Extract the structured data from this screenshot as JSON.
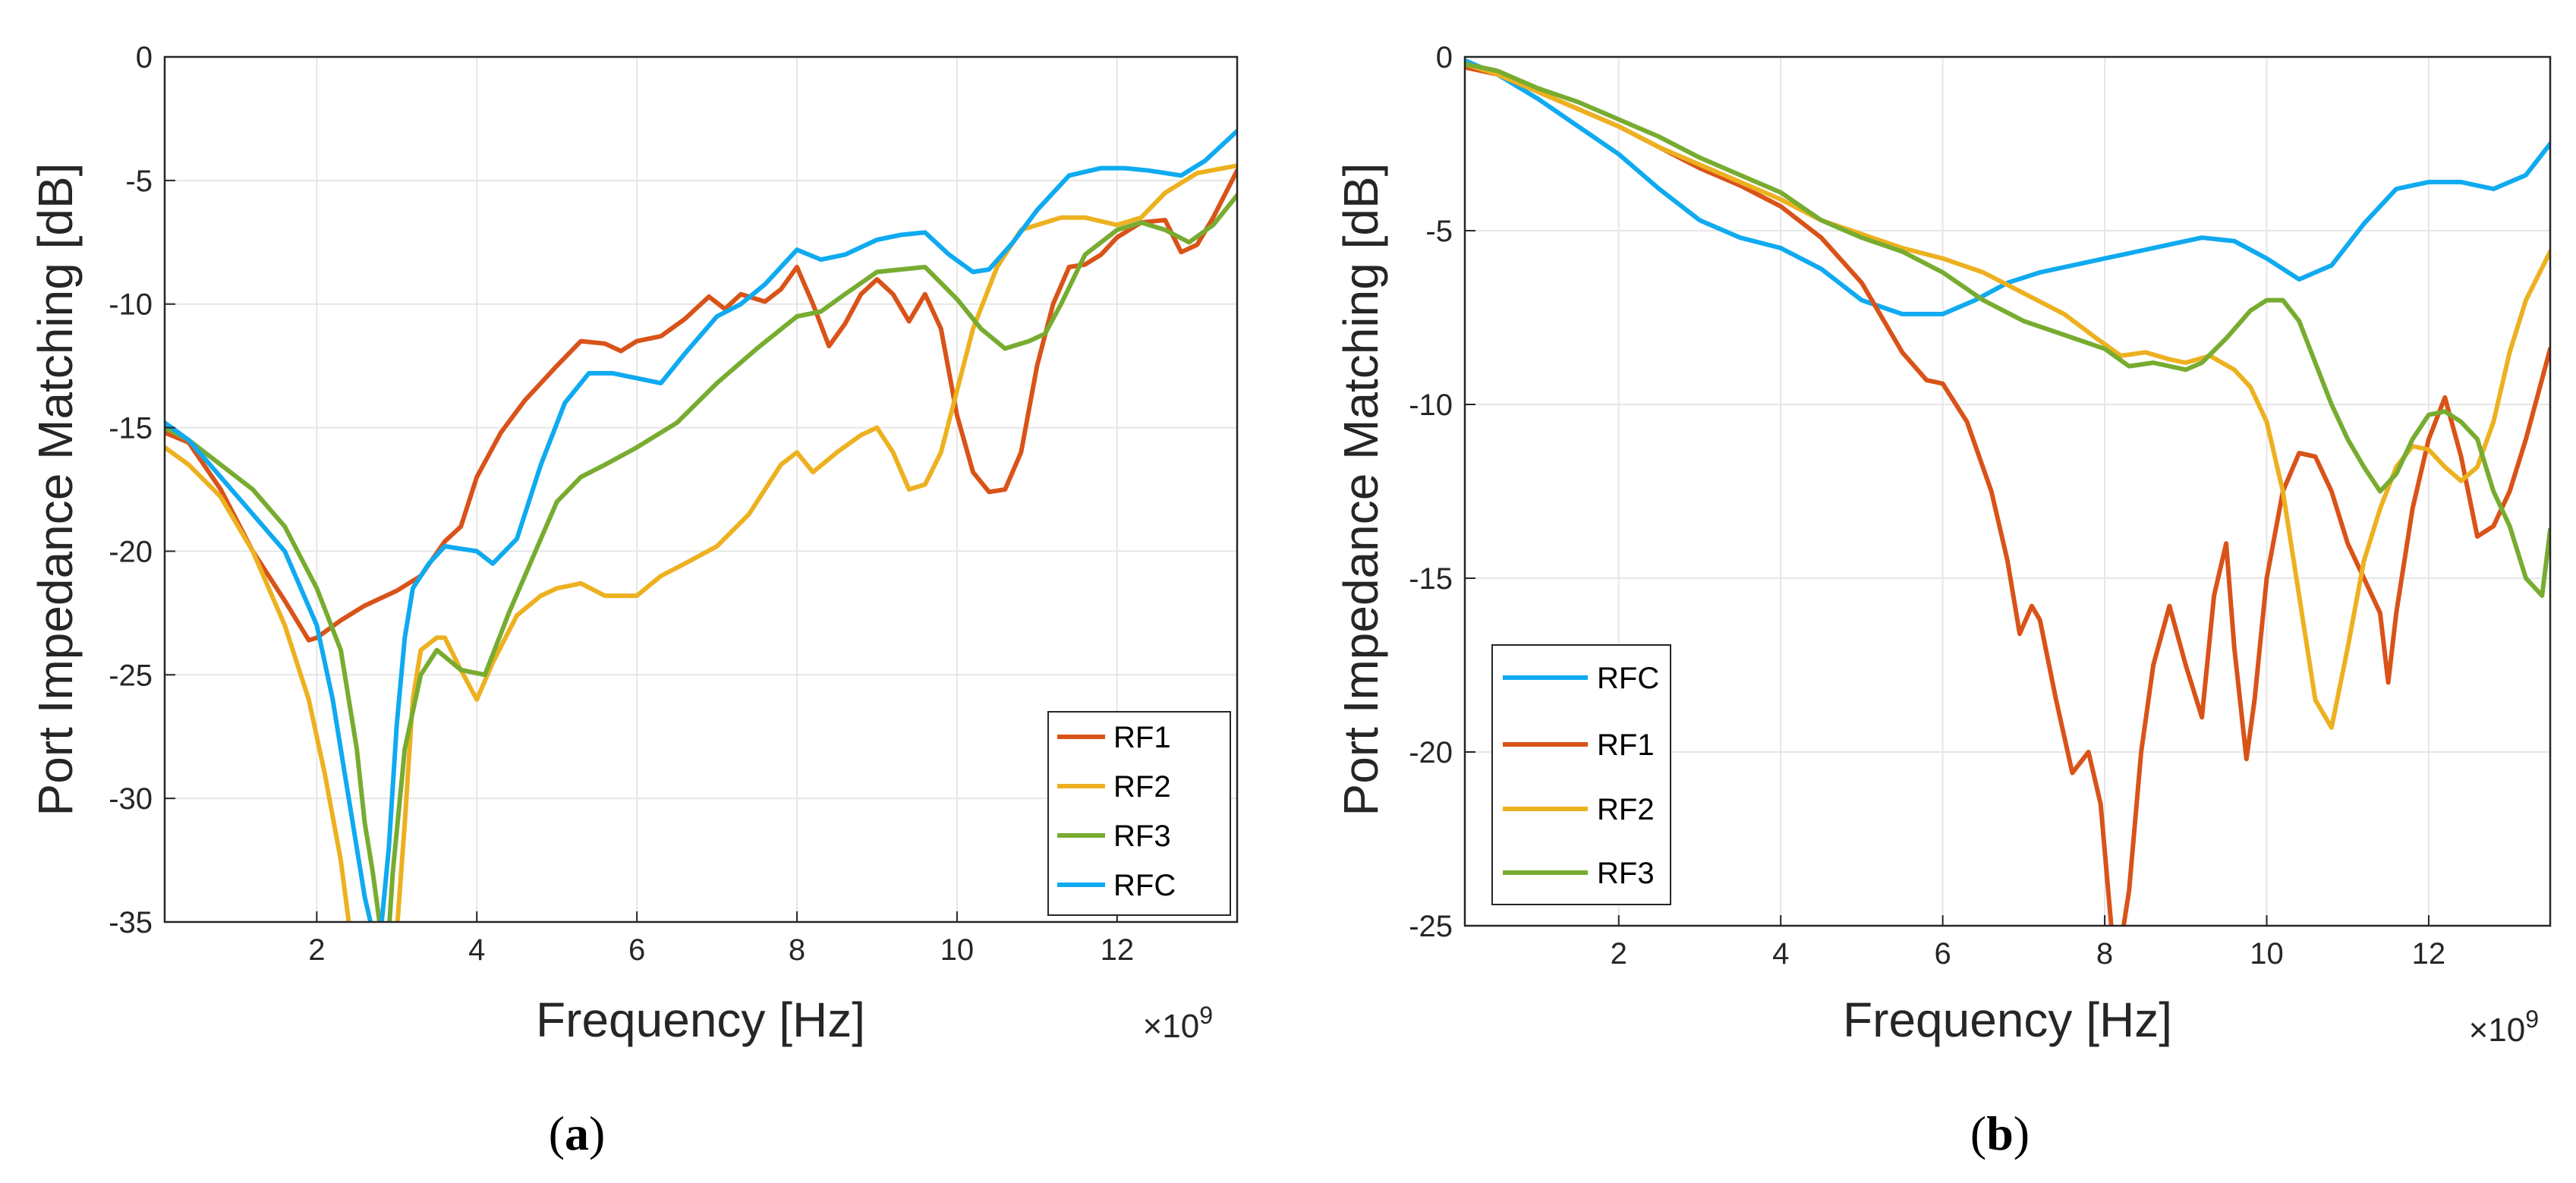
{
  "colors": {
    "RF1": "#D95319",
    "RF2": "#EDB120",
    "RF3": "#77AC30",
    "RFC": "#0FAAF0",
    "grid": "#E6E6E6",
    "axis": "#262626"
  },
  "chart_data": [
    {
      "type": "line",
      "caption": {
        "open": "(",
        "letter": "a",
        "close": ")"
      },
      "xlabel": "Frequency [Hz]",
      "ylabel": "Port Impedance Matching  [dB]",
      "x_multiplier": {
        "base": "×10",
        "exponent": "9"
      },
      "xlim": [
        100000000.0,
        13500000000.0
      ],
      "ylim": [
        -35,
        0
      ],
      "xticks": [
        2000000000.0,
        4000000000.0,
        6000000000.0,
        8000000000.0,
        10000000000.0,
        12000000000.0
      ],
      "xtick_labels": [
        "2",
        "4",
        "6",
        "8",
        "10",
        "12"
      ],
      "yticks": [
        0,
        -5,
        -10,
        -15,
        -20,
        -25,
        -30,
        -35
      ],
      "ytick_labels": [
        "0",
        "-5",
        "-10",
        "-15",
        "-20",
        "-25",
        "-30",
        "-35"
      ],
      "grid": true,
      "legend_position": "bottom-right",
      "series": [
        {
          "name": "RF1",
          "x": [
            100000000.0,
            400000000.0,
            800000000.0,
            1200000000.0,
            1600000000.0,
            1900000000.0,
            2000000000.0,
            2300000000.0,
            2600000000.0,
            2800000000.0,
            3000000000.0,
            3300000000.0,
            3600000000.0,
            3800000000.0,
            4000000000.0,
            4300000000.0,
            4600000000.0,
            5000000000.0,
            5300000000.0,
            5600000000.0,
            5800000000.0,
            6000000000.0,
            6300000000.0,
            6600000000.0,
            6900000000.0,
            7100000000.0,
            7300000000.0,
            7600000000.0,
            7800000000.0,
            8000000000.0,
            8200000000.0,
            8400000000.0,
            8600000000.0,
            8800000000.0,
            9000000000.0,
            9200000000.0,
            9400000000.0,
            9600000000.0,
            9800000000.0,
            10000000000.0,
            10200000000.0,
            10400000000.0,
            10600000000.0,
            10800000000.0,
            11000000000.0,
            11200000000.0,
            11400000000.0,
            11600000000.0,
            11800000000.0,
            12000000000.0,
            12300000000.0,
            12600000000.0,
            12800000000.0,
            13000000000.0,
            13200000000.0,
            13500000000.0
          ],
          "y": [
            -15.2,
            -15.6,
            -17.5,
            -20.0,
            -22.0,
            -23.6,
            -23.5,
            -22.8,
            -22.2,
            -21.9,
            -21.6,
            -21.0,
            -19.6,
            -19.0,
            -17.0,
            -15.2,
            -13.9,
            -12.5,
            -11.5,
            -11.6,
            -11.9,
            -11.5,
            -11.3,
            -10.6,
            -9.7,
            -10.2,
            -9.6,
            -9.9,
            -9.4,
            -8.5,
            -10.0,
            -11.7,
            -10.8,
            -9.6,
            -9.0,
            -9.6,
            -10.7,
            -9.6,
            -11.0,
            -14.5,
            -16.8,
            -17.6,
            -17.5,
            -16.0,
            -12.5,
            -10.0,
            -8.5,
            -8.4,
            -8.0,
            -7.3,
            -6.7,
            -6.6,
            -7.9,
            -7.6,
            -6.5,
            -4.6
          ]
        },
        {
          "name": "RF2",
          "x": [
            100000000.0,
            400000000.0,
            800000000.0,
            1200000000.0,
            1600000000.0,
            1900000000.0,
            2100000000.0,
            2300000000.0,
            2400000000.0,
            2500000000.0,
            3000000000.0,
            3100000000.0,
            3200000000.0,
            3300000000.0,
            3500000000.0,
            3600000000.0,
            3800000000.0,
            4000000000.0,
            4200000000.0,
            4500000000.0,
            4800000000.0,
            5000000000.0,
            5300000000.0,
            5600000000.0,
            6000000000.0,
            6300000000.0,
            6600000000.0,
            7000000000.0,
            7400000000.0,
            7800000000.0,
            8000000000.0,
            8200000000.0,
            8500000000.0,
            8800000000.0,
            9000000000.0,
            9200000000.0,
            9400000000.0,
            9600000000.0,
            9800000000.0,
            10000000000.0,
            10200000000.0,
            10500000000.0,
            10800000000.0,
            11000000000.0,
            11300000000.0,
            11600000000.0,
            12000000000.0,
            12300000000.0,
            12600000000.0,
            13000000000.0,
            13500000000.0
          ],
          "y": [
            -15.8,
            -16.5,
            -17.8,
            -20.0,
            -23.0,
            -26.0,
            -29.0,
            -32.5,
            -35,
            -35.4,
            -35.4,
            -31.0,
            -26.0,
            -24.0,
            -23.5,
            -23.5,
            -24.8,
            -26.0,
            -24.5,
            -22.6,
            -21.8,
            -21.5,
            -21.3,
            -21.8,
            -21.8,
            -21.0,
            -20.5,
            -19.8,
            -18.5,
            -16.5,
            -16.0,
            -16.8,
            -16.0,
            -15.3,
            -15.0,
            -16.0,
            -17.5,
            -17.3,
            -16.0,
            -13.5,
            -11.0,
            -8.5,
            -7.0,
            -6.8,
            -6.5,
            -6.5,
            -6.8,
            -6.5,
            -5.5,
            -4.7,
            -4.4
          ]
        },
        {
          "name": "RF3",
          "x": [
            100000000.0,
            400000000.0,
            800000000.0,
            1200000000.0,
            1600000000.0,
            2000000000.0,
            2300000000.0,
            2500000000.0,
            2600000000.0,
            2700000000.0,
            2800000000.0,
            2900000000.0,
            2950000000.0,
            3100000000.0,
            3300000000.0,
            3500000000.0,
            3800000000.0,
            4100000000.0,
            4400000000.0,
            4800000000.0,
            5000000000.0,
            5300000000.0,
            5600000000.0,
            6000000000.0,
            6500000000.0,
            7000000000.0,
            7500000000.0,
            8000000000.0,
            8300000000.0,
            8600000000.0,
            9000000000.0,
            9300000000.0,
            9600000000.0,
            10000000000.0,
            10300000000.0,
            10600000000.0,
            10900000000.0,
            11100000000.0,
            11300000000.0,
            11600000000.0,
            12000000000.0,
            12300000000.0,
            12600000000.0,
            12900000000.0,
            13200000000.0,
            13500000000.0
          ],
          "y": [
            -15.0,
            -15.5,
            -16.5,
            -17.5,
            -19.0,
            -21.5,
            -24.0,
            -28.0,
            -31.0,
            -33.0,
            -35.4,
            -35.4,
            -33.0,
            -28.0,
            -25.0,
            -24.0,
            -24.8,
            -25.0,
            -22.5,
            -19.5,
            -18.0,
            -17.0,
            -16.5,
            -15.8,
            -14.8,
            -13.2,
            -11.8,
            -10.5,
            -10.3,
            -9.6,
            -8.7,
            -8.6,
            -8.5,
            -9.8,
            -11.0,
            -11.8,
            -11.5,
            -11.2,
            -10.0,
            -8.0,
            -7.0,
            -6.7,
            -7.0,
            -7.5,
            -6.8,
            -5.6
          ]
        },
        {
          "name": "RFC",
          "x": [
            100000000.0,
            400000000.0,
            800000000.0,
            1200000000.0,
            1600000000.0,
            2000000000.0,
            2200000000.0,
            2400000000.0,
            2600000000.0,
            2700000000.0,
            2800000000.0,
            2900000000.0,
            3000000000.0,
            3100000000.0,
            3200000000.0,
            3400000000.0,
            3600000000.0,
            3800000000.0,
            4000000000.0,
            4200000000.0,
            4500000000.0,
            4800000000.0,
            5100000000.0,
            5400000000.0,
            5700000000.0,
            6000000000.0,
            6300000000.0,
            6600000000.0,
            7000000000.0,
            7300000000.0,
            7600000000.0,
            8000000000.0,
            8300000000.0,
            8600000000.0,
            9000000000.0,
            9300000000.0,
            9600000000.0,
            9900000000.0,
            10200000000.0,
            10400000000.0,
            10700000000.0,
            11000000000.0,
            11400000000.0,
            11800000000.0,
            12100000000.0,
            12400000000.0,
            12800000000.0,
            13100000000.0,
            13500000000.0
          ],
          "y": [
            -14.8,
            -15.5,
            -17.0,
            -18.5,
            -20.0,
            -23.0,
            -26.0,
            -30.0,
            -34.0,
            -35.4,
            -35.4,
            -32.0,
            -27.0,
            -23.5,
            -21.5,
            -20.5,
            -19.8,
            -19.9,
            -20.0,
            -20.5,
            -19.5,
            -16.5,
            -14.0,
            -12.8,
            -12.8,
            -13.0,
            -13.2,
            -12.0,
            -10.5,
            -10.0,
            -9.2,
            -7.8,
            -8.2,
            -8.0,
            -7.4,
            -7.2,
            -7.1,
            -8.0,
            -8.7,
            -8.6,
            -7.5,
            -6.2,
            -4.8,
            -4.5,
            -4.5,
            -4.6,
            -4.8,
            -4.2,
            -3.0
          ]
        }
      ]
    },
    {
      "type": "line",
      "caption": {
        "open": "(",
        "letter": "b",
        "close": ")"
      },
      "xlabel": "Frequency [Hz]",
      "ylabel": "Port Impedance Matching  [dB]",
      "x_multiplier": {
        "base": "×10",
        "exponent": "9"
      },
      "xlim": [
        100000000.0,
        13500000000.0
      ],
      "ylim": [
        -25,
        0
      ],
      "xticks": [
        2000000000.0,
        4000000000.0,
        6000000000.0,
        8000000000.0,
        10000000000.0,
        12000000000.0
      ],
      "xtick_labels": [
        "2",
        "4",
        "6",
        "8",
        "10",
        "12"
      ],
      "yticks": [
        0,
        -5,
        -10,
        -15,
        -20,
        -25
      ],
      "ytick_labels": [
        "0",
        "-5",
        "-10",
        "-15",
        "-20",
        "-25"
      ],
      "grid": true,
      "legend_position": "bottom-left",
      "series": [
        {
          "name": "RFC",
          "x": [
            100000000.0,
            500000000.0,
            1000000000.0,
            1500000000.0,
            2000000000.0,
            2500000000.0,
            3000000000.0,
            3500000000.0,
            4000000000.0,
            4500000000.0,
            5000000000.0,
            5500000000.0,
            6000000000.0,
            6400000000.0,
            6800000000.0,
            7200000000.0,
            7600000000.0,
            8000000000.0,
            8400000000.0,
            8800000000.0,
            9200000000.0,
            9600000000.0,
            10000000000.0,
            10400000000.0,
            10800000000.0,
            11200000000.0,
            11600000000.0,
            12000000000.0,
            12400000000.0,
            12800000000.0,
            13200000000.0,
            13500000000.0
          ],
          "y": [
            -0.1,
            -0.5,
            -1.2,
            -2.0,
            -2.8,
            -3.8,
            -4.7,
            -5.2,
            -5.5,
            -6.1,
            -7.0,
            -7.4,
            -7.4,
            -7.0,
            -6.5,
            -6.2,
            -6.0,
            -5.8,
            -5.6,
            -5.4,
            -5.2,
            -5.3,
            -5.8,
            -6.4,
            -6.0,
            -4.8,
            -3.8,
            -3.6,
            -3.6,
            -3.8,
            -3.4,
            -2.5
          ]
        },
        {
          "name": "RF1",
          "x": [
            100000000.0,
            500000000.0,
            1000000000.0,
            1500000000.0,
            2000000000.0,
            2500000000.0,
            3000000000.0,
            3500000000.0,
            4000000000.0,
            4500000000.0,
            5000000000.0,
            5500000000.0,
            5800000000.0,
            6000000000.0,
            6300000000.0,
            6600000000.0,
            6800000000.0,
            6950000000.0,
            7100000000.0,
            7200000000.0,
            7400000000.0,
            7600000000.0,
            7800000000.0,
            7950000000.0,
            8100000000.0,
            8200000000.0,
            8300000000.0,
            8450000000.0,
            8600000000.0,
            8800000000.0,
            9000000000.0,
            9200000000.0,
            9350000000.0,
            9500000000.0,
            9600000000.0,
            9750000000.0,
            9850000000.0,
            10000000000.0,
            10200000000.0,
            10400000000.0,
            10600000000.0,
            10800000000.0,
            11000000000.0,
            11200000000.0,
            11400000000.0,
            11500000000.0,
            11600000000.0,
            11800000000.0,
            12000000000.0,
            12200000000.0,
            12400000000.0,
            12600000000.0,
            12800000000.0,
            13000000000.0,
            13200000000.0,
            13500000000.0
          ],
          "y": [
            -0.3,
            -0.5,
            -1.0,
            -1.5,
            -2.0,
            -2.6,
            -3.2,
            -3.7,
            -4.3,
            -5.2,
            -6.5,
            -8.5,
            -9.3,
            -9.4,
            -10.5,
            -12.5,
            -14.5,
            -16.6,
            -15.8,
            -16.2,
            -18.5,
            -20.6,
            -20.0,
            -21.5,
            -25.5,
            -25.5,
            -24.0,
            -20.0,
            -17.5,
            -15.8,
            -17.5,
            -19.0,
            -15.5,
            -14.0,
            -17.0,
            -20.2,
            -18.5,
            -15.0,
            -12.5,
            -11.4,
            -11.5,
            -12.5,
            -14.0,
            -15.0,
            -16.0,
            -18.0,
            -16.0,
            -13.0,
            -11.0,
            -9.8,
            -11.5,
            -13.8,
            -13.5,
            -12.5,
            -11.0,
            -8.4
          ]
        },
        {
          "name": "RF2",
          "x": [
            100000000.0,
            500000000.0,
            1000000000.0,
            1500000000.0,
            2000000000.0,
            2500000000.0,
            3000000000.0,
            3500000000.0,
            4000000000.0,
            4500000000.0,
            5000000000.0,
            5500000000.0,
            6000000000.0,
            6500000000.0,
            7000000000.0,
            7500000000.0,
            7900000000.0,
            8200000000.0,
            8500000000.0,
            8800000000.0,
            9000000000.0,
            9300000000.0,
            9600000000.0,
            9800000000.0,
            10000000000.0,
            10200000000.0,
            10400000000.0,
            10600000000.0,
            10800000000.0,
            11000000000.0,
            11200000000.0,
            11400000000.0,
            11600000000.0,
            11800000000.0,
            12000000000.0,
            12200000000.0,
            12400000000.0,
            12600000000.0,
            12800000000.0,
            13000000000.0,
            13200000000.0,
            13500000000.0
          ],
          "y": [
            -0.2,
            -0.5,
            -1.0,
            -1.5,
            -2.0,
            -2.6,
            -3.1,
            -3.6,
            -4.1,
            -4.7,
            -5.1,
            -5.5,
            -5.8,
            -6.2,
            -6.8,
            -7.4,
            -8.1,
            -8.6,
            -8.5,
            -8.7,
            -8.8,
            -8.6,
            -9.0,
            -9.5,
            -10.5,
            -12.5,
            -15.5,
            -18.5,
            -19.3,
            -17.0,
            -14.5,
            -13.0,
            -11.8,
            -11.2,
            -11.3,
            -11.8,
            -12.2,
            -11.8,
            -10.5,
            -8.5,
            -7.0,
            -5.6
          ]
        },
        {
          "name": "RF3",
          "x": [
            100000000.0,
            500000000.0,
            1000000000.0,
            1500000000.0,
            2000000000.0,
            2500000000.0,
            3000000000.0,
            3500000000.0,
            4000000000.0,
            4500000000.0,
            5000000000.0,
            5500000000.0,
            6000000000.0,
            6500000000.0,
            7000000000.0,
            7500000000.0,
            8000000000.0,
            8300000000.0,
            8600000000.0,
            9000000000.0,
            9200000000.0,
            9500000000.0,
            9800000000.0,
            10000000000.0,
            10200000000.0,
            10400000000.0,
            10600000000.0,
            10800000000.0,
            11000000000.0,
            11200000000.0,
            11400000000.0,
            11600000000.0,
            11800000000.0,
            12000000000.0,
            12200000000.0,
            12400000000.0,
            12600000000.0,
            12800000000.0,
            13000000000.0,
            13200000000.0,
            13400000000.0,
            13500000000.0
          ],
          "y": [
            -0.2,
            -0.4,
            -0.9,
            -1.3,
            -1.8,
            -2.3,
            -2.9,
            -3.4,
            -3.9,
            -4.7,
            -5.2,
            -5.6,
            -6.2,
            -7.0,
            -7.6,
            -8.0,
            -8.4,
            -8.9,
            -8.8,
            -9.0,
            -8.8,
            -8.1,
            -7.3,
            -7.0,
            -7.0,
            -7.6,
            -8.8,
            -10.0,
            -11.0,
            -11.8,
            -12.5,
            -12.0,
            -11.0,
            -10.3,
            -10.2,
            -10.5,
            -11.0,
            -12.5,
            -13.5,
            -15.0,
            -15.5,
            -13.6
          ]
        }
      ]
    }
  ]
}
